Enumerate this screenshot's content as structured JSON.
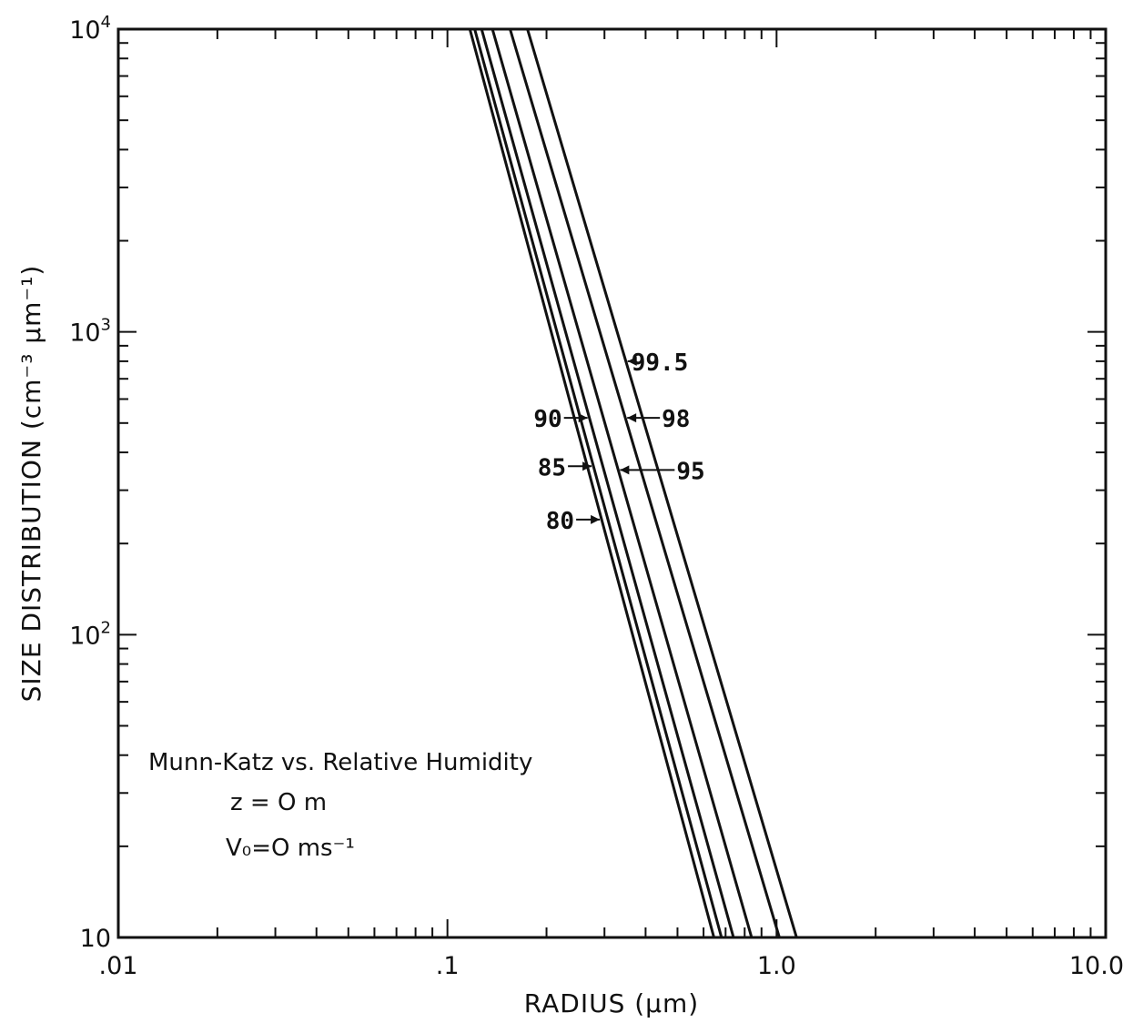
{
  "chart_data": {
    "type": "line",
    "xlabel": "RADIUS (μm)",
    "ylabel": "SIZE DISTRIBUTION (cm⁻³ μm⁻¹)",
    "xscale": "log",
    "yscale": "log",
    "xlim": [
      0.01,
      10.0
    ],
    "ylim": [
      10,
      10000
    ],
    "x_tick_labels": [
      ".01",
      ".1",
      "1.0",
      "10.0"
    ],
    "x_ticks": [
      0.01,
      0.1,
      1.0,
      10.0
    ],
    "y_ticks": [
      10,
      100,
      1000,
      10000
    ],
    "y_tick_labels": [
      {
        "base": "10",
        "exp": ""
      },
      {
        "base": "10",
        "exp": "2"
      },
      {
        "base": "10",
        "exp": "3"
      },
      {
        "base": "10",
        "exp": "4"
      }
    ],
    "grid": false,
    "annotation_lines": [
      "Munn-Katz vs. Relative Humidity",
      "z = O m",
      "V₀=O ms⁻¹"
    ],
    "series": [
      {
        "name": "80",
        "points": [
          [
            0.117,
            10000
          ],
          [
            0.645,
            10
          ]
        ]
      },
      {
        "name": "85",
        "points": [
          [
            0.121,
            10000
          ],
          [
            0.68,
            10
          ]
        ]
      },
      {
        "name": "90",
        "points": [
          [
            0.127,
            10000
          ],
          [
            0.74,
            10
          ]
        ]
      },
      {
        "name": "95",
        "points": [
          [
            0.137,
            10000
          ],
          [
            0.84,
            10
          ]
        ]
      },
      {
        "name": "98",
        "points": [
          [
            0.155,
            10000
          ],
          [
            1.02,
            10
          ]
        ]
      },
      {
        "name": "99.5",
        "points": [
          [
            0.175,
            10000
          ],
          [
            1.15,
            10
          ]
        ]
      }
    ],
    "curve_labels": [
      {
        "text": "99.5",
        "side": "right",
        "series": "99.5",
        "y": 800
      },
      {
        "text": "98",
        "side": "right",
        "series": "98",
        "y": 520
      },
      {
        "text": "95",
        "side": "right",
        "series": "95",
        "y": 350
      },
      {
        "text": "90",
        "side": "left",
        "series": "90",
        "y": 520
      },
      {
        "text": "85",
        "side": "left",
        "series": "85",
        "y": 360
      },
      {
        "text": "80",
        "side": "left",
        "series": "80",
        "y": 240
      }
    ]
  }
}
